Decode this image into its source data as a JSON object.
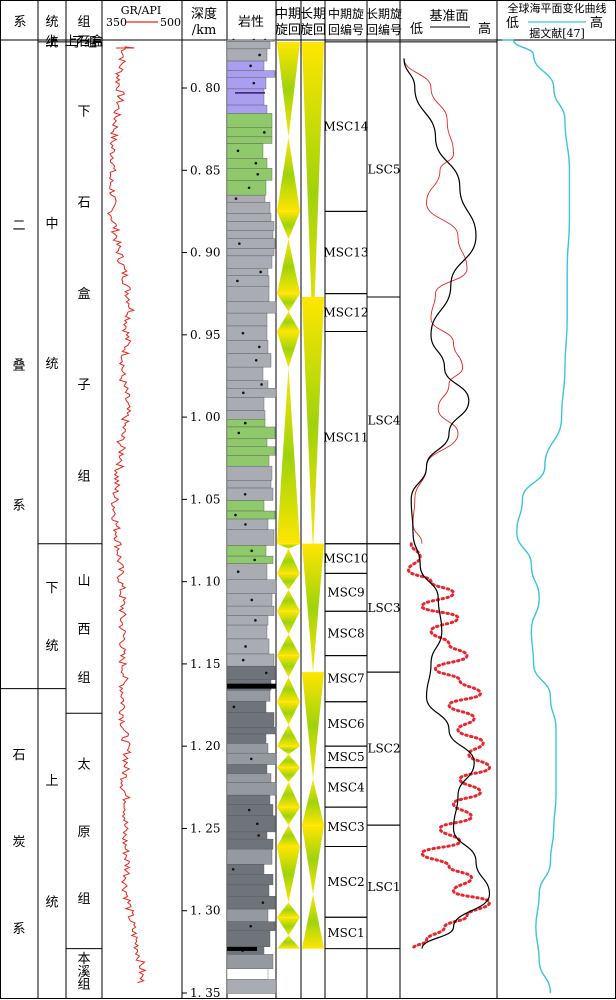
{
  "columns": {
    "system": "系",
    "series": "统",
    "formation": "组",
    "gr_title": "GR/API",
    "gr_min": "350",
    "gr_max": "500",
    "depth": "深度",
    "depth_unit": "/km",
    "lithology": "岩性",
    "mid_cycle_1": "中期",
    "mid_cycle_2": "旋回",
    "long_cycle_1": "长期",
    "long_cycle_2": "旋回",
    "mid_code_1": "中期旋",
    "mid_code_2": "回编号",
    "long_code_1": "长期旋",
    "long_code_2": "回编号",
    "base_level": "基准面",
    "low": "低",
    "high": "高",
    "sea_level_title": "全球海平面变化曲线",
    "sea_low": "低",
    "sea_high": "高",
    "sea_source": "据文献[47]"
  },
  "systems": [
    {
      "label": "二叠系",
      "chars": [
        "二",
        "叠",
        "系"
      ],
      "top": 0.745,
      "bottom": 1.165
    },
    {
      "label": "石炭系",
      "chars": [
        "石",
        "炭",
        "系"
      ],
      "top": 1.165,
      "bottom": 1.35
    }
  ],
  "series": [
    {
      "label": "上统",
      "chars": [
        "上",
        "统"
      ],
      "top": 0.745,
      "bottom": 0.772
    },
    {
      "label": "中统",
      "chars": [
        "中",
        "统"
      ],
      "top": 0.772,
      "bottom": 1.077
    },
    {
      "label": "下统",
      "chars": [
        "下",
        "统"
      ],
      "top": 1.077,
      "bottom": 1.165
    },
    {
      "label": "上统",
      "chars": [
        "上",
        "统"
      ],
      "top": 1.165,
      "bottom": 1.35
    }
  ],
  "formations": [
    {
      "label": "上石盒子组",
      "chars": [
        "上石盒",
        "子组"
      ],
      "top": 0.745,
      "bottom": 0.772
    },
    {
      "label": "下石盒子组",
      "chars": [
        "下",
        "石",
        "盒",
        "子",
        "组"
      ],
      "top": 0.772,
      "bottom": 1.077
    },
    {
      "label": "山西组",
      "chars": [
        "山",
        "西",
        "组"
      ],
      "top": 1.077,
      "bottom": 1.18
    },
    {
      "label": "太原组",
      "chars": [
        "太",
        "原",
        "组"
      ],
      "top": 1.18,
      "bottom": 1.323
    },
    {
      "label": "本溪组",
      "chars": [
        "本",
        "溪",
        "组"
      ],
      "top": 1.323,
      "bottom": 1.35
    }
  ],
  "chart_data": {
    "type": "line",
    "y_axis": {
      "label": "深度/km",
      "range": [
        0.77,
        1.35
      ],
      "ticks": [
        0.8,
        0.85,
        0.9,
        0.95,
        1.0,
        1.05,
        1.1,
        1.15,
        1.2,
        1.25,
        1.3,
        1.35
      ],
      "tick_labels": [
        "0. 80",
        "0. 85",
        "0. 90",
        "0. 95",
        "1. 00",
        "1. 05",
        "1. 10",
        "1. 15",
        "1. 20",
        "1. 25",
        "1. 30",
        "1. 35"
      ]
    },
    "gr_log": {
      "name": "GR/API",
      "x_range": [
        350,
        500
      ],
      "color": "#e8261e",
      "depth": [
        0.775,
        0.785,
        0.795,
        0.805,
        0.815,
        0.825,
        0.835,
        0.845,
        0.855,
        0.865,
        0.875,
        0.885,
        0.895,
        0.905,
        0.915,
        0.925,
        0.935,
        0.945,
        0.955,
        0.965,
        0.975,
        0.985,
        0.995,
        1.005,
        1.015,
        1.025,
        1.035,
        1.045,
        1.055,
        1.065,
        1.075,
        1.085,
        1.095,
        1.105,
        1.115,
        1.125,
        1.135,
        1.145,
        1.155,
        1.165,
        1.175,
        1.185,
        1.195,
        1.205,
        1.215,
        1.225,
        1.235,
        1.245,
        1.255,
        1.265,
        1.275,
        1.285,
        1.295,
        1.305,
        1.315,
        1.325,
        1.335,
        1.345
      ],
      "values": [
        392,
        385,
        378,
        383,
        375,
        372,
        366,
        370,
        362,
        368,
        364,
        372,
        376,
        384,
        392,
        398,
        404,
        394,
        396,
        390,
        385,
        393,
        395,
        390,
        383,
        386,
        376,
        373,
        371,
        374,
        378,
        380,
        382,
        385,
        387,
        385,
        389,
        384,
        391,
        387,
        388,
        388,
        392,
        396,
        392,
        389,
        396,
        392,
        390,
        394,
        397,
        392,
        398,
        403,
        410,
        418,
        425,
        422
      ]
    },
    "mid_cycles": [
      {
        "code": "MSC14",
        "top": 0.772,
        "bottom": 0.875
      },
      {
        "code": "MSC13",
        "top": 0.875,
        "bottom": 0.925
      },
      {
        "code": "MSC12",
        "top": 0.925,
        "bottom": 0.948
      },
      {
        "code": "MSC11",
        "top": 0.948,
        "bottom": 1.077
      },
      {
        "code": "MSC10",
        "top": 1.077,
        "bottom": 1.095
      },
      {
        "code": "MSC9",
        "top": 1.095,
        "bottom": 1.118
      },
      {
        "code": "MSC8",
        "top": 1.118,
        "bottom": 1.145
      },
      {
        "code": "MSC7",
        "top": 1.145,
        "bottom": 1.173
      },
      {
        "code": "MSC6",
        "top": 1.173,
        "bottom": 1.2
      },
      {
        "code": "MSC5",
        "top": 1.2,
        "bottom": 1.213
      },
      {
        "code": "MSC4",
        "top": 1.213,
        "bottom": 1.237
      },
      {
        "code": "MSC3",
        "top": 1.237,
        "bottom": 1.261
      },
      {
        "code": "MSC2",
        "top": 1.261,
        "bottom": 1.304
      },
      {
        "code": "MSC1",
        "top": 1.304,
        "bottom": 1.323
      }
    ],
    "long_cycles": [
      {
        "code": "LSC5",
        "top": 0.772,
        "bottom": 0.927
      },
      {
        "code": "LSC4",
        "top": 0.927,
        "bottom": 1.077
      },
      {
        "code": "LSC3",
        "top": 1.077,
        "bottom": 1.155
      },
      {
        "code": "LSC2",
        "top": 1.155,
        "bottom": 1.248
      },
      {
        "code": "LSC1",
        "top": 1.248,
        "bottom": 1.323
      }
    ],
    "mid_triangles_turn": [
      0.83,
      0.892,
      0.936,
      0.97,
      1.08,
      1.105,
      1.132,
      1.158,
      1.187,
      1.205,
      1.222,
      1.248,
      1.295,
      1.315
    ],
    "long_triangles_turn": [
      0.955,
      1.082,
      1.155,
      1.22,
      1.29
    ],
    "base_level_curve": {
      "name": "基准面",
      "color": "#000000",
      "depth": [
        0.782,
        0.8,
        0.83,
        0.86,
        0.89,
        0.92,
        0.95,
        0.97,
        0.99,
        1.01,
        1.03,
        1.05,
        1.07,
        1.09,
        1.11,
        1.13,
        1.15,
        1.17,
        1.19,
        1.21,
        1.23,
        1.25,
        1.27,
        1.29,
        1.31,
        1.323
      ],
      "values": [
        0.0,
        0.12,
        0.35,
        0.62,
        0.8,
        0.52,
        0.3,
        0.45,
        0.72,
        0.5,
        0.25,
        0.08,
        0.1,
        0.18,
        0.38,
        0.42,
        0.3,
        0.25,
        0.5,
        0.78,
        0.6,
        0.55,
        0.8,
        0.95,
        0.55,
        0.2
      ]
    },
    "mid_level_curve": {
      "color": "#e8261e",
      "depth": [
        0.782,
        0.8,
        0.82,
        0.84,
        0.85,
        0.87,
        0.89,
        0.91,
        0.925,
        0.94,
        0.955,
        0.97,
        0.98,
        0.995,
        1.01,
        1.03,
        1.05,
        1.065,
        1.077
      ],
      "values": [
        0.0,
        0.3,
        0.48,
        0.55,
        0.4,
        0.25,
        0.6,
        0.7,
        0.35,
        0.3,
        0.55,
        0.65,
        0.5,
        0.38,
        0.6,
        0.25,
        0.12,
        0.1,
        0.2
      ]
    },
    "short_cycle_curve": {
      "color": "#e8262e",
      "style": "dotted",
      "depth": [
        1.077,
        1.085,
        1.093,
        1.1,
        1.107,
        1.115,
        1.122,
        1.13,
        1.138,
        1.145,
        1.153,
        1.16,
        1.168,
        1.175,
        1.183,
        1.19,
        1.198,
        1.205,
        1.213,
        1.22,
        1.228,
        1.235,
        1.243,
        1.25,
        1.258,
        1.265,
        1.273,
        1.28,
        1.288,
        1.295,
        1.303,
        1.31,
        1.318,
        1.323
      ],
      "values": [
        0.08,
        0.18,
        0.05,
        0.3,
        0.55,
        0.2,
        0.6,
        0.3,
        0.5,
        0.7,
        0.35,
        0.62,
        0.85,
        0.5,
        0.78,
        0.6,
        0.88,
        0.72,
        0.95,
        0.62,
        0.85,
        0.55,
        0.75,
        0.4,
        0.62,
        0.2,
        0.5,
        0.75,
        0.55,
        0.95,
        0.7,
        0.45,
        0.25,
        0.1
      ]
    },
    "sea_level_curve": {
      "name": "全球海平面变化曲线",
      "color": "#38c6d8",
      "depth": [
        0.745,
        0.76,
        0.78,
        0.8,
        0.82,
        0.85,
        0.88,
        0.91,
        0.94,
        0.97,
        1.0,
        1.03,
        1.05,
        1.07,
        1.09,
        1.11,
        1.13,
        1.15,
        1.17,
        1.19,
        1.21,
        1.23,
        1.25,
        1.27,
        1.29,
        1.31,
        1.33,
        1.35
      ],
      "values": [
        0.02,
        0.12,
        0.3,
        0.48,
        0.58,
        0.62,
        0.62,
        0.6,
        0.6,
        0.58,
        0.55,
        0.4,
        0.2,
        0.15,
        0.28,
        0.35,
        0.28,
        0.3,
        0.45,
        0.5,
        0.5,
        0.5,
        0.48,
        0.45,
        0.35,
        0.32,
        0.35,
        0.45
      ]
    }
  }
}
